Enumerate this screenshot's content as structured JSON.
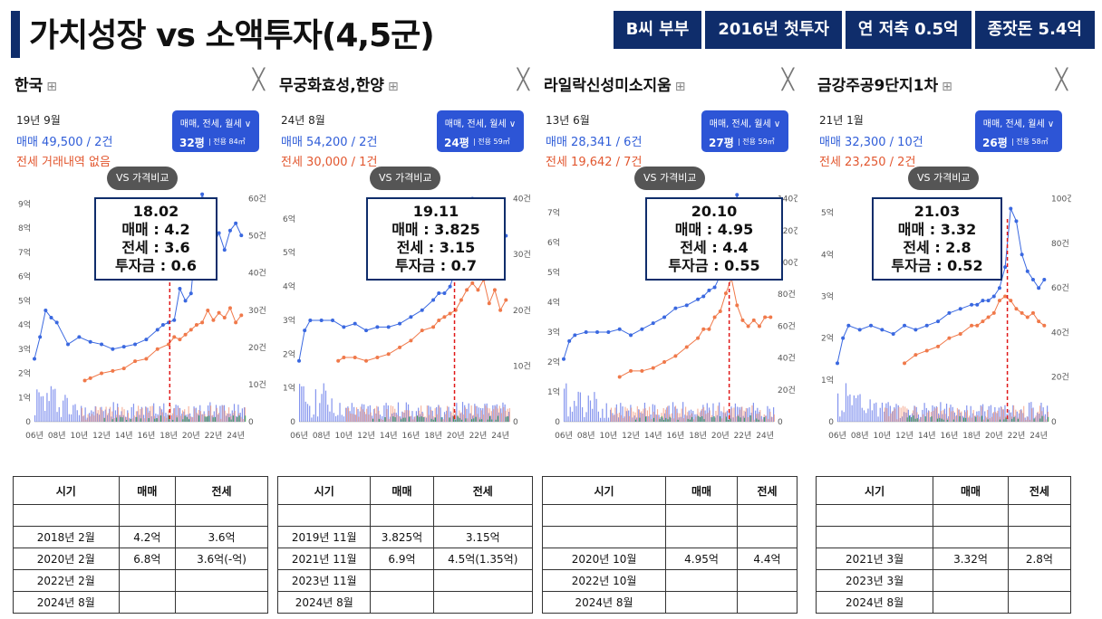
{
  "header": {
    "title": "가치성장 vs 소액투자(4,5군)",
    "tags": [
      "B씨 부부",
      "2016년 첫투자",
      "연 저축 0.5억",
      "종잣돈 5.4억"
    ]
  },
  "common": {
    "close_icon": "close-icon",
    "bookmark_icon": "map-icon",
    "filter_label": "매매, 전세, 월세 ∨",
    "area_prefix": "전용",
    "compare_label": "VS 가격비교",
    "table_headers": [
      "시기",
      "매매",
      "전세"
    ]
  },
  "colors": {
    "sale": "#3a68e0",
    "rent": "#f0794a",
    "volume_green": "#3aa64a",
    "accent": "#0f2d6b",
    "marker": "#e01818"
  },
  "panels": [
    {
      "name": "한국",
      "latest_date": "19년 9월",
      "sale_info": "매매 49,500 / 2건",
      "rent_info": "전세 거래내역 없음",
      "pyeong": "32평",
      "area": "84㎡",
      "box": {
        "l1": "18.02",
        "l2": "매매 : 4.2",
        "l3": "전세 : 3.6",
        "l4": "투자금 : 0.6"
      },
      "table": [
        [
          "",
          "",
          ""
        ],
        [
          "2018년 2월",
          "4.2억",
          "3.6억"
        ],
        [
          "2020년 2월",
          "6.8억",
          "3.6억(-억)"
        ],
        [
          "2022년 2월",
          "",
          ""
        ],
        [
          "2024년 8월",
          "",
          ""
        ]
      ],
      "chart_data": {
        "type": "line",
        "title": "",
        "x_ticks": [
          "06년",
          "08년",
          "10년",
          "12년",
          "14년",
          "16년",
          "18년",
          "20년",
          "22년",
          "24년"
        ],
        "y_ticks_left": [
          "0",
          "1억",
          "2억",
          "3억",
          "4억",
          "5억",
          "6억",
          "7억",
          "8억",
          "9억"
        ],
        "y_ticks_right": [
          "0",
          "10건",
          "20건",
          "30건",
          "40건",
          "50건",
          "60건"
        ],
        "ylim_left": [
          0,
          9.5
        ],
        "xlim": [
          2006,
          2024.8
        ],
        "marker_x": 2018.1,
        "series": [
          {
            "key": "sale",
            "x": [
              2006,
              2006.5,
              2007,
              2007.5,
              2008,
              2009,
              2010,
              2011,
              2012,
              2013,
              2014,
              2015,
              2016,
              2017,
              2017.5,
              2018,
              2018.5,
              2019,
              2019.5,
              2020,
              2020.5,
              2021,
              2021.5,
              2022,
              2022.5,
              2023,
              2023.5,
              2024,
              2024.5
            ],
            "values": [
              2.6,
              3.5,
              4.6,
              4.3,
              4.1,
              3.2,
              3.5,
              3.3,
              3.2,
              3.0,
              3.1,
              3.2,
              3.4,
              3.8,
              4.0,
              4.1,
              4.2,
              5.5,
              5.0,
              5.3,
              7.8,
              9.4,
              8.6,
              7.3,
              7.8,
              7.1,
              7.9,
              8.2,
              7.7
            ]
          },
          {
            "key": "rent",
            "x": [
              2010.5,
              2011,
              2012,
              2013,
              2014,
              2015,
              2016,
              2017,
              2018,
              2018.5,
              2019,
              2019.5,
              2020,
              2020.5,
              2021,
              2021.5,
              2022,
              2022.5,
              2023,
              2023.5,
              2024,
              2024.5
            ],
            "values": [
              1.7,
              1.8,
              2.0,
              2.1,
              2.2,
              2.5,
              2.6,
              3.0,
              3.2,
              3.5,
              3.4,
              3.6,
              3.8,
              4.0,
              4.1,
              4.6,
              4.2,
              4.5,
              4.3,
              4.7,
              4.1,
              4.4
            ]
          }
        ]
      }
    },
    {
      "name": "무궁화효성,한양",
      "latest_date": "24년 8월",
      "sale_info": "매매 54,200 / 2건",
      "rent_info": "전세 30,000 / 1건",
      "pyeong": "24평",
      "area": "59㎡",
      "box": {
        "l1": "19.11",
        "l2": "매매 : 3.825",
        "l3": "전세 : 3.15",
        "l4": "투자금 : 0.7"
      },
      "table": [
        [
          "",
          "",
          ""
        ],
        [
          "2019년 11월",
          "3.825억",
          "3.15억"
        ],
        [
          "2021년 11월",
          "6.9억",
          "4.5억(1.35억)"
        ],
        [
          "2023년 11월",
          "",
          ""
        ],
        [
          "2024년 8월",
          "",
          ""
        ]
      ],
      "chart_data": {
        "type": "line",
        "title": "",
        "x_ticks": [
          "06년",
          "08년",
          "10년",
          "12년",
          "14년",
          "16년",
          "18년",
          "20년",
          "22년",
          "24년"
        ],
        "y_ticks_left": [
          "0",
          "1억",
          "2억",
          "3억",
          "4억",
          "5억",
          "6억"
        ],
        "y_ticks_right": [
          "0",
          "10건",
          "20건",
          "30건",
          "40건"
        ],
        "ylim_left": [
          0,
          6.8
        ],
        "xlim": [
          2006,
          2024.8
        ],
        "marker_x": 2019.9,
        "series": [
          {
            "key": "sale",
            "x": [
              2006,
              2006.5,
              2007,
              2008,
              2009,
              2010,
              2011,
              2012,
              2013,
              2014,
              2015,
              2016,
              2017,
              2018,
              2018.5,
              2019,
              2019.5,
              2020,
              2020.5,
              2021,
              2021.5,
              2022,
              2022.5,
              2023,
              2023.5,
              2024,
              2024.5
            ],
            "values": [
              1.8,
              2.7,
              3.0,
              3.0,
              3.0,
              2.8,
              2.9,
              2.7,
              2.8,
              2.8,
              2.9,
              3.1,
              3.3,
              3.6,
              3.8,
              3.8,
              4.0,
              4.5,
              5.0,
              5.6,
              6.6,
              5.8,
              5.3,
              5.4,
              5.2,
              5.6,
              5.5
            ]
          },
          {
            "key": "rent",
            "x": [
              2009.5,
              2010,
              2011,
              2012,
              2013,
              2014,
              2015,
              2016,
              2017,
              2018,
              2018.5,
              2019,
              2019.5,
              2020,
              2020.5,
              2021,
              2021.5,
              2022,
              2022.5,
              2023,
              2023.5,
              2024,
              2024.5
            ],
            "values": [
              1.8,
              1.9,
              1.9,
              1.8,
              1.9,
              2.0,
              2.2,
              2.4,
              2.7,
              2.8,
              3.0,
              3.1,
              3.2,
              3.3,
              3.6,
              3.9,
              4.1,
              3.9,
              4.2,
              3.5,
              3.9,
              3.3,
              3.6
            ]
          }
        ]
      }
    },
    {
      "name": "라일락신성미소지움",
      "latest_date": "13년 6월",
      "sale_info": "매매 28,341 / 6건",
      "rent_info": "전세 19,642 / 7건",
      "pyeong": "27평",
      "area": "59㎡",
      "box": {
        "l1": "20.10",
        "l2": "매매 : 4.95",
        "l3": "전세 : 4.4",
        "l4": "투자금 : 0.55"
      },
      "table": [
        [
          "",
          "",
          ""
        ],
        [
          "",
          "",
          ""
        ],
        [
          "2020년 10월",
          "4.95억",
          "4.4억"
        ],
        [
          "2022년 10월",
          "",
          ""
        ],
        [
          "2024년 8월",
          "",
          ""
        ]
      ],
      "chart_data": {
        "type": "line",
        "title": "",
        "x_ticks": [
          "06년",
          "08년",
          "10년",
          "12년",
          "14년",
          "16년",
          "18년",
          "20년",
          "22년",
          "24년"
        ],
        "y_ticks_left": [
          "0",
          "1억",
          "2억",
          "3억",
          "4억",
          "5억",
          "6억",
          "7억"
        ],
        "y_ticks_right": [
          "0",
          "20건",
          "40건",
          "60건",
          "80건",
          "100건",
          "120건",
          "140건"
        ],
        "ylim_left": [
          0,
          7.7
        ],
        "xlim": [
          2006,
          2024.8
        ],
        "marker_x": 2020.8,
        "series": [
          {
            "key": "sale",
            "x": [
              2006,
              2006.5,
              2007,
              2008,
              2009,
              2010,
              2011,
              2012,
              2013,
              2014,
              2015,
              2016,
              2017,
              2018,
              2018.5,
              2019,
              2019.5,
              2020,
              2020.5,
              2021,
              2021.5,
              2022,
              2022.5,
              2023,
              2023.5,
              2024,
              2024.5
            ],
            "values": [
              2.1,
              2.7,
              2.9,
              3.0,
              3.0,
              3.0,
              3.1,
              2.9,
              3.1,
              3.3,
              3.5,
              3.8,
              3.9,
              4.1,
              4.2,
              4.4,
              4.5,
              4.9,
              5.2,
              6.2,
              7.6,
              5.8,
              6.4,
              5.8,
              6.2,
              5.8,
              6.0
            ]
          },
          {
            "key": "rent",
            "x": [
              2011,
              2012,
              2013,
              2014,
              2015,
              2016,
              2017,
              2018,
              2018.5,
              2019,
              2019.5,
              2020,
              2020.5,
              2021,
              2021.5,
              2022,
              2022.5,
              2023,
              2023.5,
              2024,
              2024.5
            ],
            "values": [
              1.5,
              1.7,
              1.7,
              1.8,
              2.0,
              2.2,
              2.5,
              2.8,
              3.1,
              3.1,
              3.5,
              3.7,
              4.3,
              4.8,
              3.9,
              3.4,
              3.2,
              3.4,
              3.2,
              3.5,
              3.5
            ]
          }
        ]
      }
    },
    {
      "name": "금강주공9단지1차",
      "latest_date": "21년 1월",
      "sale_info": "매매 32,300 / 10건",
      "rent_info": "전세 23,250 / 2건",
      "pyeong": "26평",
      "area": "58㎡",
      "box": {
        "l1": "21.03",
        "l2": "매매 : 3.32",
        "l3": "전세 : 2.8",
        "l4": "투자금 : 0.52"
      },
      "table": [
        [
          "",
          "",
          ""
        ],
        [
          "",
          "",
          ""
        ],
        [
          "2021년 3월",
          "3.32억",
          "2.8억"
        ],
        [
          "2023년 3월",
          "",
          ""
        ],
        [
          "2024년 8월",
          "",
          ""
        ]
      ],
      "chart_data": {
        "type": "line",
        "title": "",
        "x_ticks": [
          "06년",
          "08년",
          "10년",
          "12년",
          "14년",
          "16년",
          "18년",
          "20년",
          "22년",
          "24년"
        ],
        "y_ticks_left": [
          "0",
          "1억",
          "2억",
          "3억",
          "4억",
          "5억"
        ],
        "y_ticks_right": [
          "0",
          "20건",
          "40건",
          "60건",
          "80건",
          "100건"
        ],
        "ylim_left": [
          0,
          5.5
        ],
        "xlim": [
          2006,
          2024.8
        ],
        "marker_x": 2021.2,
        "series": [
          {
            "key": "sale",
            "x": [
              2006,
              2006.5,
              2007,
              2008,
              2009,
              2010,
              2011,
              2012,
              2013,
              2014,
              2015,
              2016,
              2017,
              2018,
              2018.5,
              2019,
              2019.5,
              2020,
              2020.5,
              2021,
              2021.5,
              2022,
              2022.5,
              2023,
              2023.5,
              2024,
              2024.5
            ],
            "values": [
              1.4,
              2.0,
              2.3,
              2.2,
              2.3,
              2.2,
              2.1,
              2.3,
              2.2,
              2.3,
              2.4,
              2.6,
              2.7,
              2.8,
              2.8,
              2.9,
              2.9,
              3.0,
              3.2,
              3.7,
              5.1,
              4.8,
              4.0,
              3.6,
              3.4,
              3.2,
              3.4
            ]
          },
          {
            "key": "rent",
            "x": [
              2012,
              2013,
              2014,
              2015,
              2016,
              2017,
              2018,
              2018.5,
              2019,
              2019.5,
              2020,
              2020.5,
              2021,
              2021.5,
              2022,
              2022.5,
              2023,
              2023.5,
              2024,
              2024.5
            ],
            "values": [
              1.4,
              1.6,
              1.7,
              1.8,
              2.0,
              2.1,
              2.3,
              2.3,
              2.4,
              2.5,
              2.6,
              2.9,
              3.0,
              2.9,
              2.7,
              2.6,
              2.5,
              2.6,
              2.4,
              2.3
            ]
          }
        ]
      }
    }
  ]
}
